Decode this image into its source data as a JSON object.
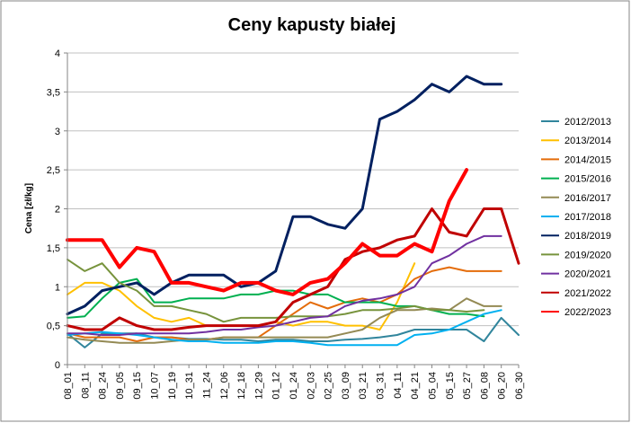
{
  "chart_data": {
    "type": "line",
    "title": "Ceny kapusty białej",
    "xlabel": "",
    "ylabel": "Cena [zł/kg]",
    "ylim": [
      0,
      4
    ],
    "yticks": [
      "0",
      "0,5",
      "1",
      "1,5",
      "2",
      "2,5",
      "3",
      "3,5",
      "4"
    ],
    "categories": [
      "08_01",
      "08_11",
      "08_24",
      "09_05",
      "09_15",
      "10_07",
      "10_19",
      "10_31",
      "11_24",
      "12_06",
      "12_18",
      "12_29",
      "01_12",
      "01_24",
      "02_03",
      "02_25",
      "03_09",
      "03_21",
      "03_31",
      "04_11",
      "04_21",
      "05_04",
      "05_15",
      "05_27",
      "06_08",
      "06_20",
      "06_30"
    ],
    "legend_position": "right",
    "series": [
      {
        "name": "2012/2013",
        "color": "#31859C",
        "width": 2,
        "values": [
          0.4,
          0.22,
          0.4,
          0.4,
          0.4,
          0.35,
          0.35,
          0.33,
          0.33,
          0.32,
          0.32,
          0.3,
          0.32,
          0.32,
          0.3,
          0.3,
          0.32,
          0.33,
          0.35,
          0.38,
          0.45,
          0.45,
          0.45,
          0.45,
          0.3,
          0.6,
          0.38
        ]
      },
      {
        "name": "2013/2014",
        "color": "#FFC000",
        "width": 2,
        "values": [
          0.9,
          1.05,
          1.05,
          0.95,
          0.75,
          0.6,
          0.55,
          0.6,
          0.5,
          0.5,
          0.5,
          0.5,
          0.55,
          0.5,
          0.55,
          0.55,
          0.5,
          0.5,
          0.45,
          0.8,
          1.3,
          null,
          null,
          null,
          null,
          null,
          null
        ]
      },
      {
        "name": "2014/2015",
        "color": "#E46C0A",
        "width": 2,
        "values": [
          0.4,
          0.35,
          0.35,
          0.35,
          0.3,
          0.35,
          0.35,
          0.32,
          0.32,
          0.35,
          0.35,
          0.35,
          0.5,
          0.65,
          0.8,
          0.72,
          0.8,
          0.85,
          0.8,
          0.9,
          1.1,
          1.2,
          1.25,
          1.2,
          1.2,
          1.2,
          null
        ]
      },
      {
        "name": "2015/2016",
        "color": "#00B050",
        "width": 2,
        "values": [
          0.6,
          0.62,
          0.85,
          1.05,
          1.1,
          0.8,
          0.8,
          0.85,
          0.85,
          0.85,
          0.9,
          0.9,
          0.95,
          0.95,
          0.9,
          0.9,
          0.8,
          0.8,
          0.8,
          0.75,
          0.75,
          0.7,
          0.65,
          0.65,
          0.62,
          null,
          null
        ]
      },
      {
        "name": "2016/2017",
        "color": "#948A54",
        "width": 2,
        "values": [
          0.35,
          0.32,
          0.3,
          0.28,
          0.28,
          0.28,
          0.3,
          0.32,
          0.32,
          0.35,
          0.35,
          0.35,
          0.35,
          0.35,
          0.35,
          0.35,
          0.4,
          0.45,
          0.6,
          0.7,
          0.7,
          0.72,
          0.7,
          0.85,
          0.75,
          0.75,
          null
        ]
      },
      {
        "name": "2017/2018",
        "color": "#00B0F0",
        "width": 2,
        "values": [
          0.38,
          0.4,
          0.42,
          0.4,
          0.38,
          0.35,
          0.32,
          0.3,
          0.3,
          0.28,
          0.28,
          0.28,
          0.3,
          0.3,
          0.28,
          0.25,
          0.25,
          0.25,
          0.25,
          0.25,
          0.38,
          0.4,
          0.45,
          0.55,
          0.65,
          0.7,
          null
        ]
      },
      {
        "name": "2018/2019",
        "color": "#002060",
        "width": 3,
        "values": [
          0.65,
          0.75,
          0.95,
          1.0,
          1.05,
          0.9,
          1.05,
          1.15,
          1.15,
          1.15,
          1.0,
          1.05,
          1.2,
          1.9,
          1.9,
          1.8,
          1.75,
          2.0,
          3.15,
          3.25,
          3.4,
          3.6,
          3.5,
          3.7,
          3.6,
          3.6,
          null
        ]
      },
      {
        "name": "2019/2020",
        "color": "#77933C",
        "width": 2,
        "values": [
          1.35,
          1.2,
          1.3,
          1.05,
          0.95,
          0.75,
          0.75,
          0.7,
          0.65,
          0.55,
          0.6,
          0.6,
          0.6,
          0.62,
          0.62,
          0.62,
          0.65,
          0.7,
          0.7,
          0.72,
          0.75,
          0.7,
          0.7,
          0.68,
          0.7,
          null,
          null
        ]
      },
      {
        "name": "2020/2021",
        "color": "#7030A0",
        "width": 2,
        "values": [
          0.4,
          0.4,
          0.38,
          0.38,
          0.4,
          0.4,
          0.4,
          0.4,
          0.42,
          0.45,
          0.45,
          0.48,
          0.5,
          0.55,
          0.6,
          0.62,
          0.75,
          0.82,
          0.85,
          0.9,
          1.0,
          1.3,
          1.4,
          1.55,
          1.65,
          1.65,
          null
        ]
      },
      {
        "name": "2021/2022",
        "color": "#C00000",
        "width": 3,
        "values": [
          0.5,
          0.45,
          0.45,
          0.6,
          0.5,
          0.45,
          0.45,
          0.48,
          0.5,
          0.5,
          0.5,
          0.5,
          0.55,
          0.8,
          0.9,
          1.0,
          1.35,
          1.45,
          1.5,
          1.6,
          1.65,
          2.0,
          1.7,
          1.65,
          2.0,
          2.0,
          1.3
        ]
      },
      {
        "name": "2022/2023",
        "color": "#FF0000",
        "width": 4,
        "values": [
          1.6,
          1.6,
          1.6,
          1.25,
          1.5,
          1.45,
          1.05,
          1.05,
          1.0,
          0.95,
          1.05,
          1.05,
          0.95,
          0.9,
          1.05,
          1.1,
          1.3,
          1.55,
          1.4,
          1.4,
          1.55,
          1.45,
          2.1,
          2.5,
          null,
          null,
          null
        ]
      }
    ]
  }
}
